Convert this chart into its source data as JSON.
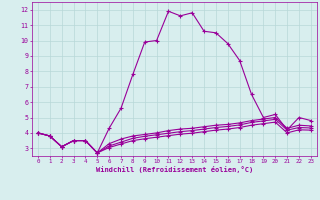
{
  "xlabel": "Windchill (Refroidissement éolien,°C)",
  "background_color": "#d8eeee",
  "line_color": "#990099",
  "grid_color": "#b8d8d8",
  "xlim": [
    -0.5,
    23.5
  ],
  "ylim": [
    2.5,
    12.5
  ],
  "xticks": [
    0,
    1,
    2,
    3,
    4,
    5,
    6,
    7,
    8,
    9,
    10,
    11,
    12,
    13,
    14,
    15,
    16,
    17,
    18,
    19,
    20,
    21,
    22,
    23
  ],
  "yticks": [
    3,
    4,
    5,
    6,
    7,
    8,
    9,
    10,
    11,
    12
  ],
  "series": [
    [
      4.0,
      3.8,
      3.1,
      3.5,
      3.5,
      2.7,
      4.3,
      5.6,
      7.8,
      9.9,
      10.0,
      11.9,
      11.6,
      11.8,
      10.6,
      10.5,
      9.8,
      8.7,
      6.5,
      5.0,
      5.2,
      4.2,
      5.0,
      4.8
    ],
    [
      4.0,
      3.8,
      3.1,
      3.5,
      3.5,
      2.7,
      3.3,
      3.6,
      3.8,
      3.9,
      4.0,
      4.15,
      4.25,
      4.3,
      4.4,
      4.5,
      4.55,
      4.65,
      4.8,
      4.9,
      5.0,
      4.3,
      4.5,
      4.45
    ],
    [
      4.0,
      3.8,
      3.1,
      3.5,
      3.5,
      2.7,
      3.15,
      3.4,
      3.65,
      3.78,
      3.88,
      3.98,
      4.08,
      4.15,
      4.25,
      4.35,
      4.42,
      4.52,
      4.68,
      4.78,
      4.88,
      4.18,
      4.35,
      4.32
    ],
    [
      4.0,
      3.8,
      3.1,
      3.5,
      3.5,
      2.7,
      3.05,
      3.28,
      3.5,
      3.62,
      3.72,
      3.82,
      3.92,
      3.98,
      4.08,
      4.18,
      4.25,
      4.35,
      4.5,
      4.6,
      4.7,
      4.0,
      4.2,
      4.18
    ]
  ]
}
